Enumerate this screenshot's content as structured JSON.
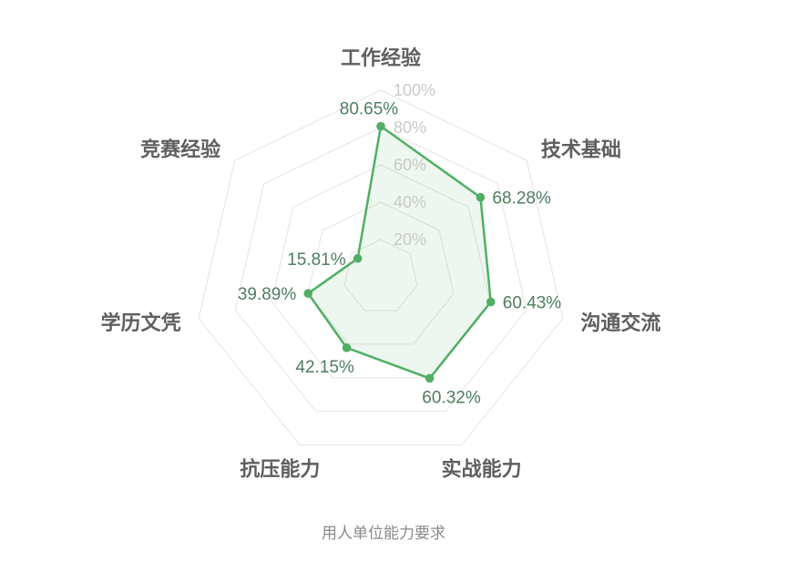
{
  "page": {
    "background": "#ffffff"
  },
  "chart_data": {
    "type": "radar",
    "title": "用人单位能力要求",
    "unit": "%",
    "range": [
      0,
      100
    ],
    "levels": 5,
    "grid": true,
    "grid_shape": "polygon",
    "show_spokes": false,
    "legend": null,
    "ticks": [
      20,
      40,
      60,
      80,
      100
    ],
    "tick_labels": [
      "20%",
      "40%",
      "60%",
      "80%",
      "100%"
    ],
    "categories": [
      "工作经验",
      "技术基础",
      "沟通交流",
      "实战能力",
      "抗压能力",
      "学历文凭",
      "竞赛经验"
    ],
    "values": [
      80.65,
      68.28,
      60.43,
      60.32,
      42.15,
      39.89,
      15.81
    ],
    "value_labels": [
      "80.65%",
      "68.28%",
      "60.43%",
      "60.32%",
      "42.15%",
      "39.89%",
      "15.81%"
    ],
    "colors": {
      "series_line": "#50af64",
      "series_fill": "rgba(80,175,100,0.10)",
      "value_label": "#4e7e61",
      "category_label": "#5f5f5f",
      "tick_label": "#c9c9c9",
      "grid_line": "#e4e4e4",
      "title": "#8a8a8a",
      "background": "#ffffff"
    }
  }
}
